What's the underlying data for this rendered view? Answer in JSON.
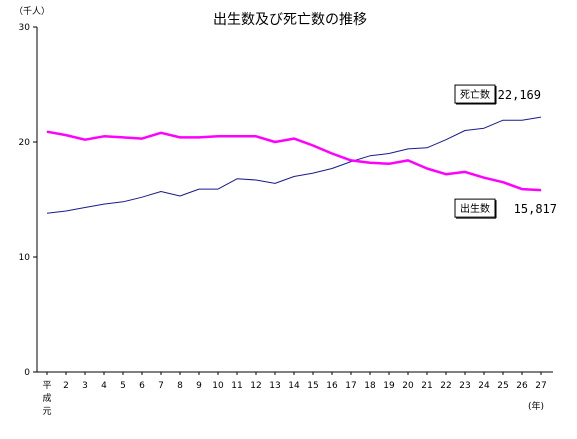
{
  "chart_data": {
    "type": "line",
    "title": "出生数及び死亡数の推移",
    "ylabel": "（千人）",
    "xlabel": "(年)",
    "ylim": [
      0,
      30
    ],
    "yticks": [
      0,
      10,
      20,
      30
    ],
    "grid": false,
    "x": [
      "平成元",
      "2",
      "3",
      "4",
      "5",
      "6",
      "7",
      "8",
      "9",
      "10",
      "11",
      "12",
      "13",
      "14",
      "15",
      "16",
      "17",
      "18",
      "19",
      "20",
      "21",
      "22",
      "23",
      "24",
      "25",
      "26",
      "27"
    ],
    "series": [
      {
        "name": "死亡数",
        "color": "#1a1a8c",
        "values": [
          13.8,
          14.0,
          14.3,
          14.6,
          14.8,
          15.2,
          15.7,
          15.3,
          15.9,
          15.9,
          16.8,
          16.7,
          16.4,
          17.0,
          17.3,
          17.7,
          18.3,
          18.8,
          19.0,
          19.4,
          19.5,
          20.2,
          21.0,
          21.2,
          21.9,
          21.9,
          22.169
        ],
        "end_label": "22,169"
      },
      {
        "name": "出生数",
        "color": "#ff00ff",
        "values": [
          20.9,
          20.6,
          20.2,
          20.5,
          20.4,
          20.3,
          20.8,
          20.4,
          20.4,
          20.5,
          20.5,
          20.5,
          20.0,
          20.3,
          19.7,
          19.0,
          18.4,
          18.2,
          18.1,
          18.4,
          17.7,
          17.2,
          17.4,
          16.9,
          16.5,
          15.9,
          15.817
        ],
        "end_label": "15,817"
      }
    ]
  }
}
